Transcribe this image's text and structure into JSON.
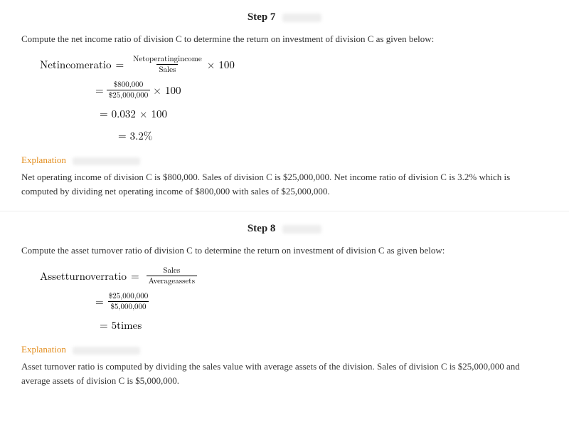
{
  "steps": [
    {
      "title": "Step 7",
      "instruction": "Compute the net income ratio of division C to determine the return on investment of division C as given below:",
      "math": {
        "lhs": "Netincomeratio",
        "eq": "=",
        "rhs_num": "Netoperatingincome",
        "rhs_den": "Sales",
        "times100": " × 100",
        "line2_num": "$800,000",
        "line2_den": "$25,000,000",
        "line2_tail": " × 100",
        "line3": "= 0.032 × 100",
        "line4": "= 3.2%"
      },
      "explanation_label": "Explanation",
      "explanation": "Net operating income of division C is $800,000. Sales of division C is $25,000,000. Net income ratio of division C is 3.2% which is computed by dividing net operating income of $800,000 with sales of $25,000,000."
    },
    {
      "title": "Step 8",
      "instruction": "Compute the asset turnover ratio of division C to determine the return on investment of division C as given below:",
      "math": {
        "lhs": "Assetturnoverratio",
        "eq": "=",
        "rhs_num": "Sales",
        "rhs_den": "Averageassets",
        "times100": "",
        "line2_num": "$25,000,000",
        "line2_den": "$5,000,000",
        "line2_tail": "",
        "line3": "= 5times",
        "line4": ""
      },
      "explanation_label": "Explanation",
      "explanation": "Asset turnover ratio is computed by dividing the sales value with average assets of the division. Sales of division C is $25,000,000 and average assets of division C is $5,000,000."
    }
  ]
}
